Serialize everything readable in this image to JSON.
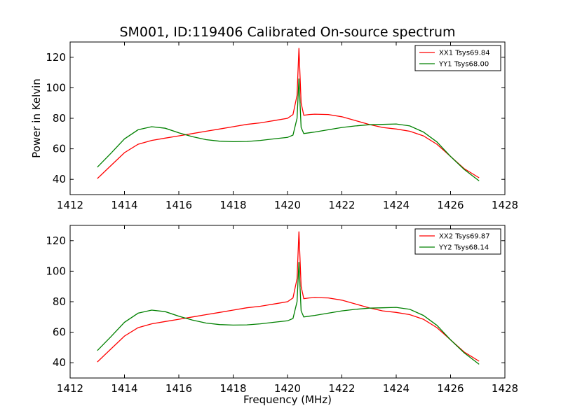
{
  "chart_data": [
    {
      "type": "line",
      "title": "SM001, ID:119406 Calibrated On-source spectrum",
      "xlabel": "",
      "ylabel": "Power in Kelvin",
      "xlim": [
        1412,
        1428
      ],
      "ylim": [
        30,
        130
      ],
      "xticks": [
        "1412",
        "1414",
        "1416",
        "1418",
        "1420",
        "1422",
        "1424",
        "1426",
        "1428"
      ],
      "yticks": [
        "40",
        "60",
        "80",
        "100",
        "120"
      ],
      "legend_position": "top-right",
      "series": [
        {
          "name": "XX1 Tsys69.84",
          "color": "#ff0000",
          "x": [
            1413.0,
            1413.5,
            1414.0,
            1414.5,
            1415.0,
            1415.5,
            1416.0,
            1416.5,
            1417.0,
            1417.5,
            1418.0,
            1418.5,
            1419.0,
            1419.5,
            1420.0,
            1420.2,
            1420.35,
            1420.42,
            1420.5,
            1420.6,
            1420.8,
            1421.0,
            1421.5,
            1422.0,
            1422.5,
            1423.0,
            1423.5,
            1424.0,
            1424.5,
            1425.0,
            1425.5,
            1426.0,
            1426.5,
            1427.05
          ],
          "y": [
            40.5,
            49,
            57.5,
            63,
            65.5,
            67,
            68.5,
            70,
            71.5,
            73,
            74.5,
            76,
            77,
            78.5,
            80,
            82.5,
            95,
            126,
            90,
            82,
            82.5,
            82.7,
            82.5,
            81,
            78.5,
            76,
            74,
            73,
            71.5,
            68.5,
            63,
            55,
            47,
            41
          ]
        },
        {
          "name": "YY1 Tsys68.00",
          "color": "#008000",
          "x": [
            1413.0,
            1413.5,
            1414.0,
            1414.5,
            1415.0,
            1415.5,
            1416.0,
            1416.5,
            1417.0,
            1417.5,
            1418.0,
            1418.5,
            1419.0,
            1419.5,
            1420.0,
            1420.2,
            1420.35,
            1420.42,
            1420.5,
            1420.6,
            1420.8,
            1421.0,
            1421.5,
            1422.0,
            1422.5,
            1423.0,
            1423.5,
            1424.0,
            1424.5,
            1425.0,
            1425.5,
            1426.0,
            1426.5,
            1427.05
          ],
          "y": [
            48,
            57,
            66.5,
            72.5,
            74.5,
            73.5,
            70.5,
            68,
            66,
            65,
            64.7,
            64.8,
            65.5,
            66.5,
            67.5,
            69,
            80,
            106,
            74,
            70,
            70.5,
            71,
            72.5,
            74,
            75,
            75.8,
            76,
            76.3,
            75,
            71,
            64.5,
            55,
            46.5,
            39
          ]
        }
      ]
    },
    {
      "type": "line",
      "title": "",
      "xlabel": "Frequency (MHz)",
      "ylabel": "",
      "xlim": [
        1412,
        1428
      ],
      "ylim": [
        30,
        130
      ],
      "xticks": [
        "1412",
        "1414",
        "1416",
        "1418",
        "1420",
        "1422",
        "1424",
        "1426",
        "1428"
      ],
      "yticks": [
        "40",
        "60",
        "80",
        "100",
        "120"
      ],
      "legend_position": "top-right",
      "series": [
        {
          "name": "XX2 Tsys69.87",
          "color": "#ff0000",
          "x": [
            1413.0,
            1413.5,
            1414.0,
            1414.5,
            1415.0,
            1415.5,
            1416.0,
            1416.5,
            1417.0,
            1417.5,
            1418.0,
            1418.5,
            1419.0,
            1419.5,
            1420.0,
            1420.2,
            1420.35,
            1420.42,
            1420.5,
            1420.6,
            1420.8,
            1421.0,
            1421.5,
            1422.0,
            1422.5,
            1423.0,
            1423.5,
            1424.0,
            1424.5,
            1425.0,
            1425.5,
            1426.0,
            1426.5,
            1427.05
          ],
          "y": [
            40.5,
            49,
            57.5,
            63,
            65.5,
            67,
            68.5,
            70,
            71.5,
            73,
            74.5,
            76,
            77,
            78.5,
            80,
            82.5,
            95,
            126,
            90,
            82,
            82.5,
            82.7,
            82.5,
            81,
            78.5,
            76,
            74,
            73,
            71.5,
            68.5,
            63,
            55,
            47,
            41
          ]
        },
        {
          "name": "YY2 Tsys68.14",
          "color": "#008000",
          "x": [
            1413.0,
            1413.5,
            1414.0,
            1414.5,
            1415.0,
            1415.5,
            1416.0,
            1416.5,
            1417.0,
            1417.5,
            1418.0,
            1418.5,
            1419.0,
            1419.5,
            1420.0,
            1420.2,
            1420.35,
            1420.42,
            1420.5,
            1420.6,
            1420.8,
            1421.0,
            1421.5,
            1422.0,
            1422.5,
            1423.0,
            1423.5,
            1424.0,
            1424.5,
            1425.0,
            1425.5,
            1426.0,
            1426.5,
            1427.05
          ],
          "y": [
            48,
            57,
            66.5,
            72.5,
            74.5,
            73.5,
            70.5,
            68,
            66,
            65,
            64.7,
            64.8,
            65.5,
            66.5,
            67.5,
            69,
            80,
            106,
            74,
            70,
            70.5,
            71,
            72.5,
            74,
            75,
            75.8,
            76,
            76.3,
            75,
            71,
            64.5,
            55,
            46.5,
            39
          ]
        }
      ]
    }
  ]
}
